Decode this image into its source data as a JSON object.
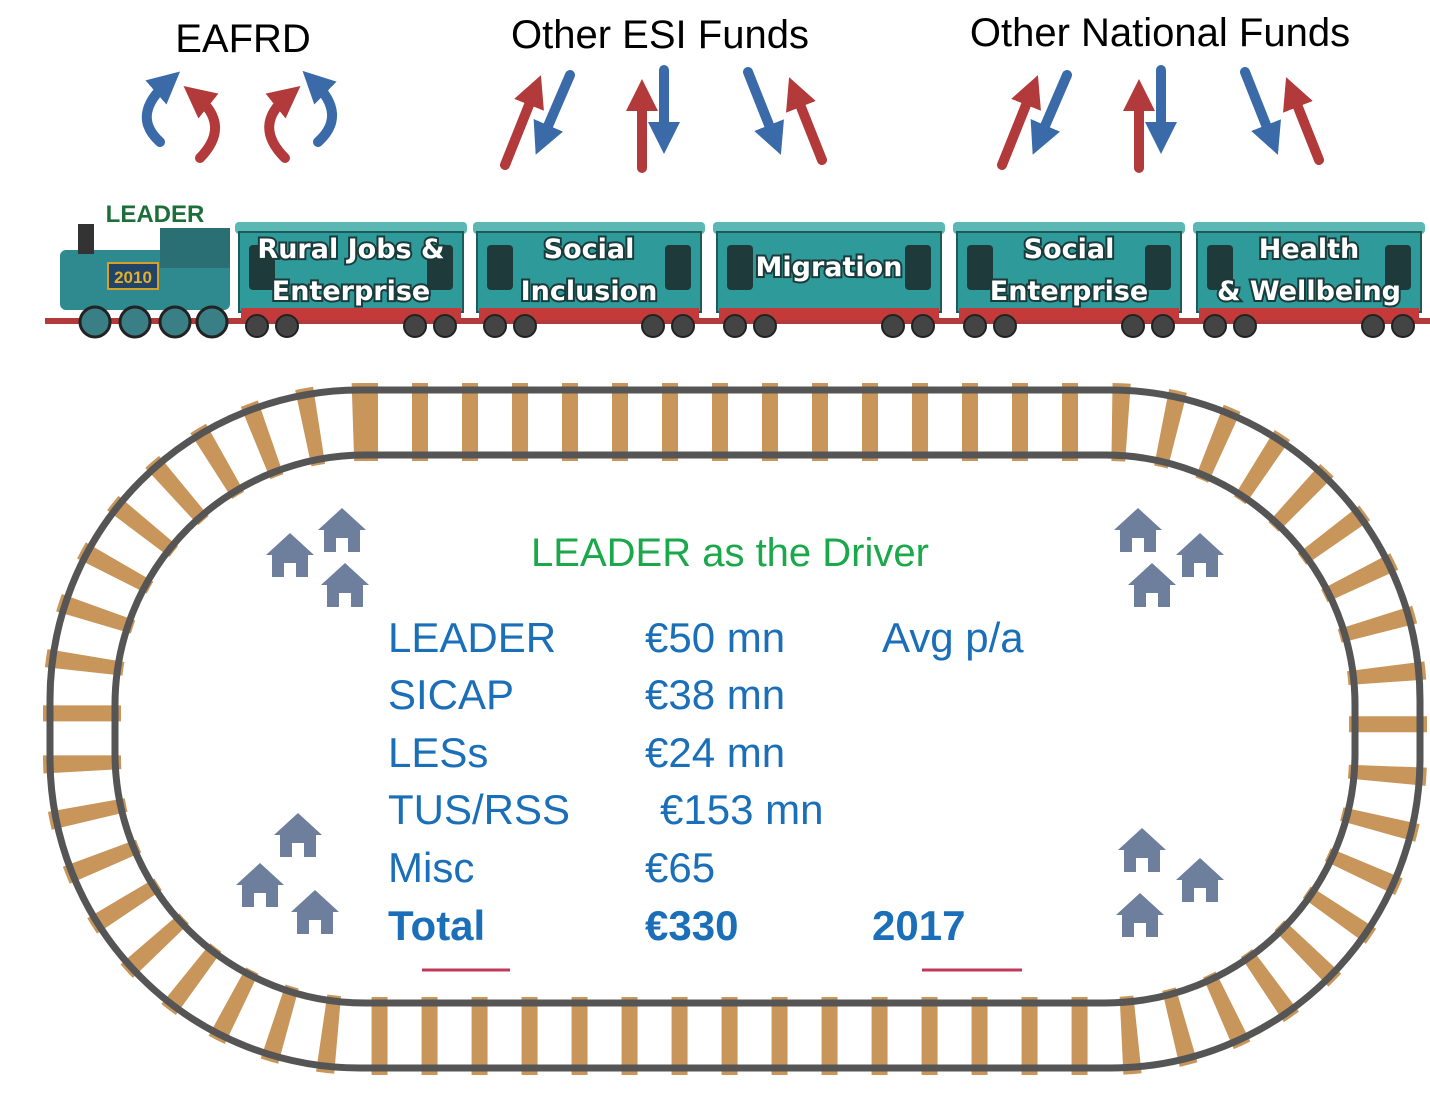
{
  "header": {
    "funds": [
      "EAFRD",
      "Other ESI Funds",
      "Other National Funds"
    ]
  },
  "train": {
    "engine_label": "LEADER",
    "engine_number": "2010",
    "carriages": [
      [
        "Rural Jobs &",
        "Enterprise"
      ],
      [
        "Social",
        "Inclusion"
      ],
      [
        "Migration"
      ],
      [
        "Social",
        "Enterprise"
      ],
      [
        "Health",
        "& Wellbeing"
      ]
    ]
  },
  "center": {
    "title": "LEADER as the Driver",
    "table": {
      "rows": [
        [
          "LEADER",
          "€50 mn",
          "Avg p/a"
        ],
        [
          "SICAP",
          "€38 mn"
        ],
        [
          "LESs",
          "€24 mn"
        ],
        [
          "TUS/RSS",
          "€153 mn"
        ],
        [
          "Misc",
          "€65"
        ],
        [
          "Total",
          "€330",
          "2017"
        ]
      ]
    }
  }
}
